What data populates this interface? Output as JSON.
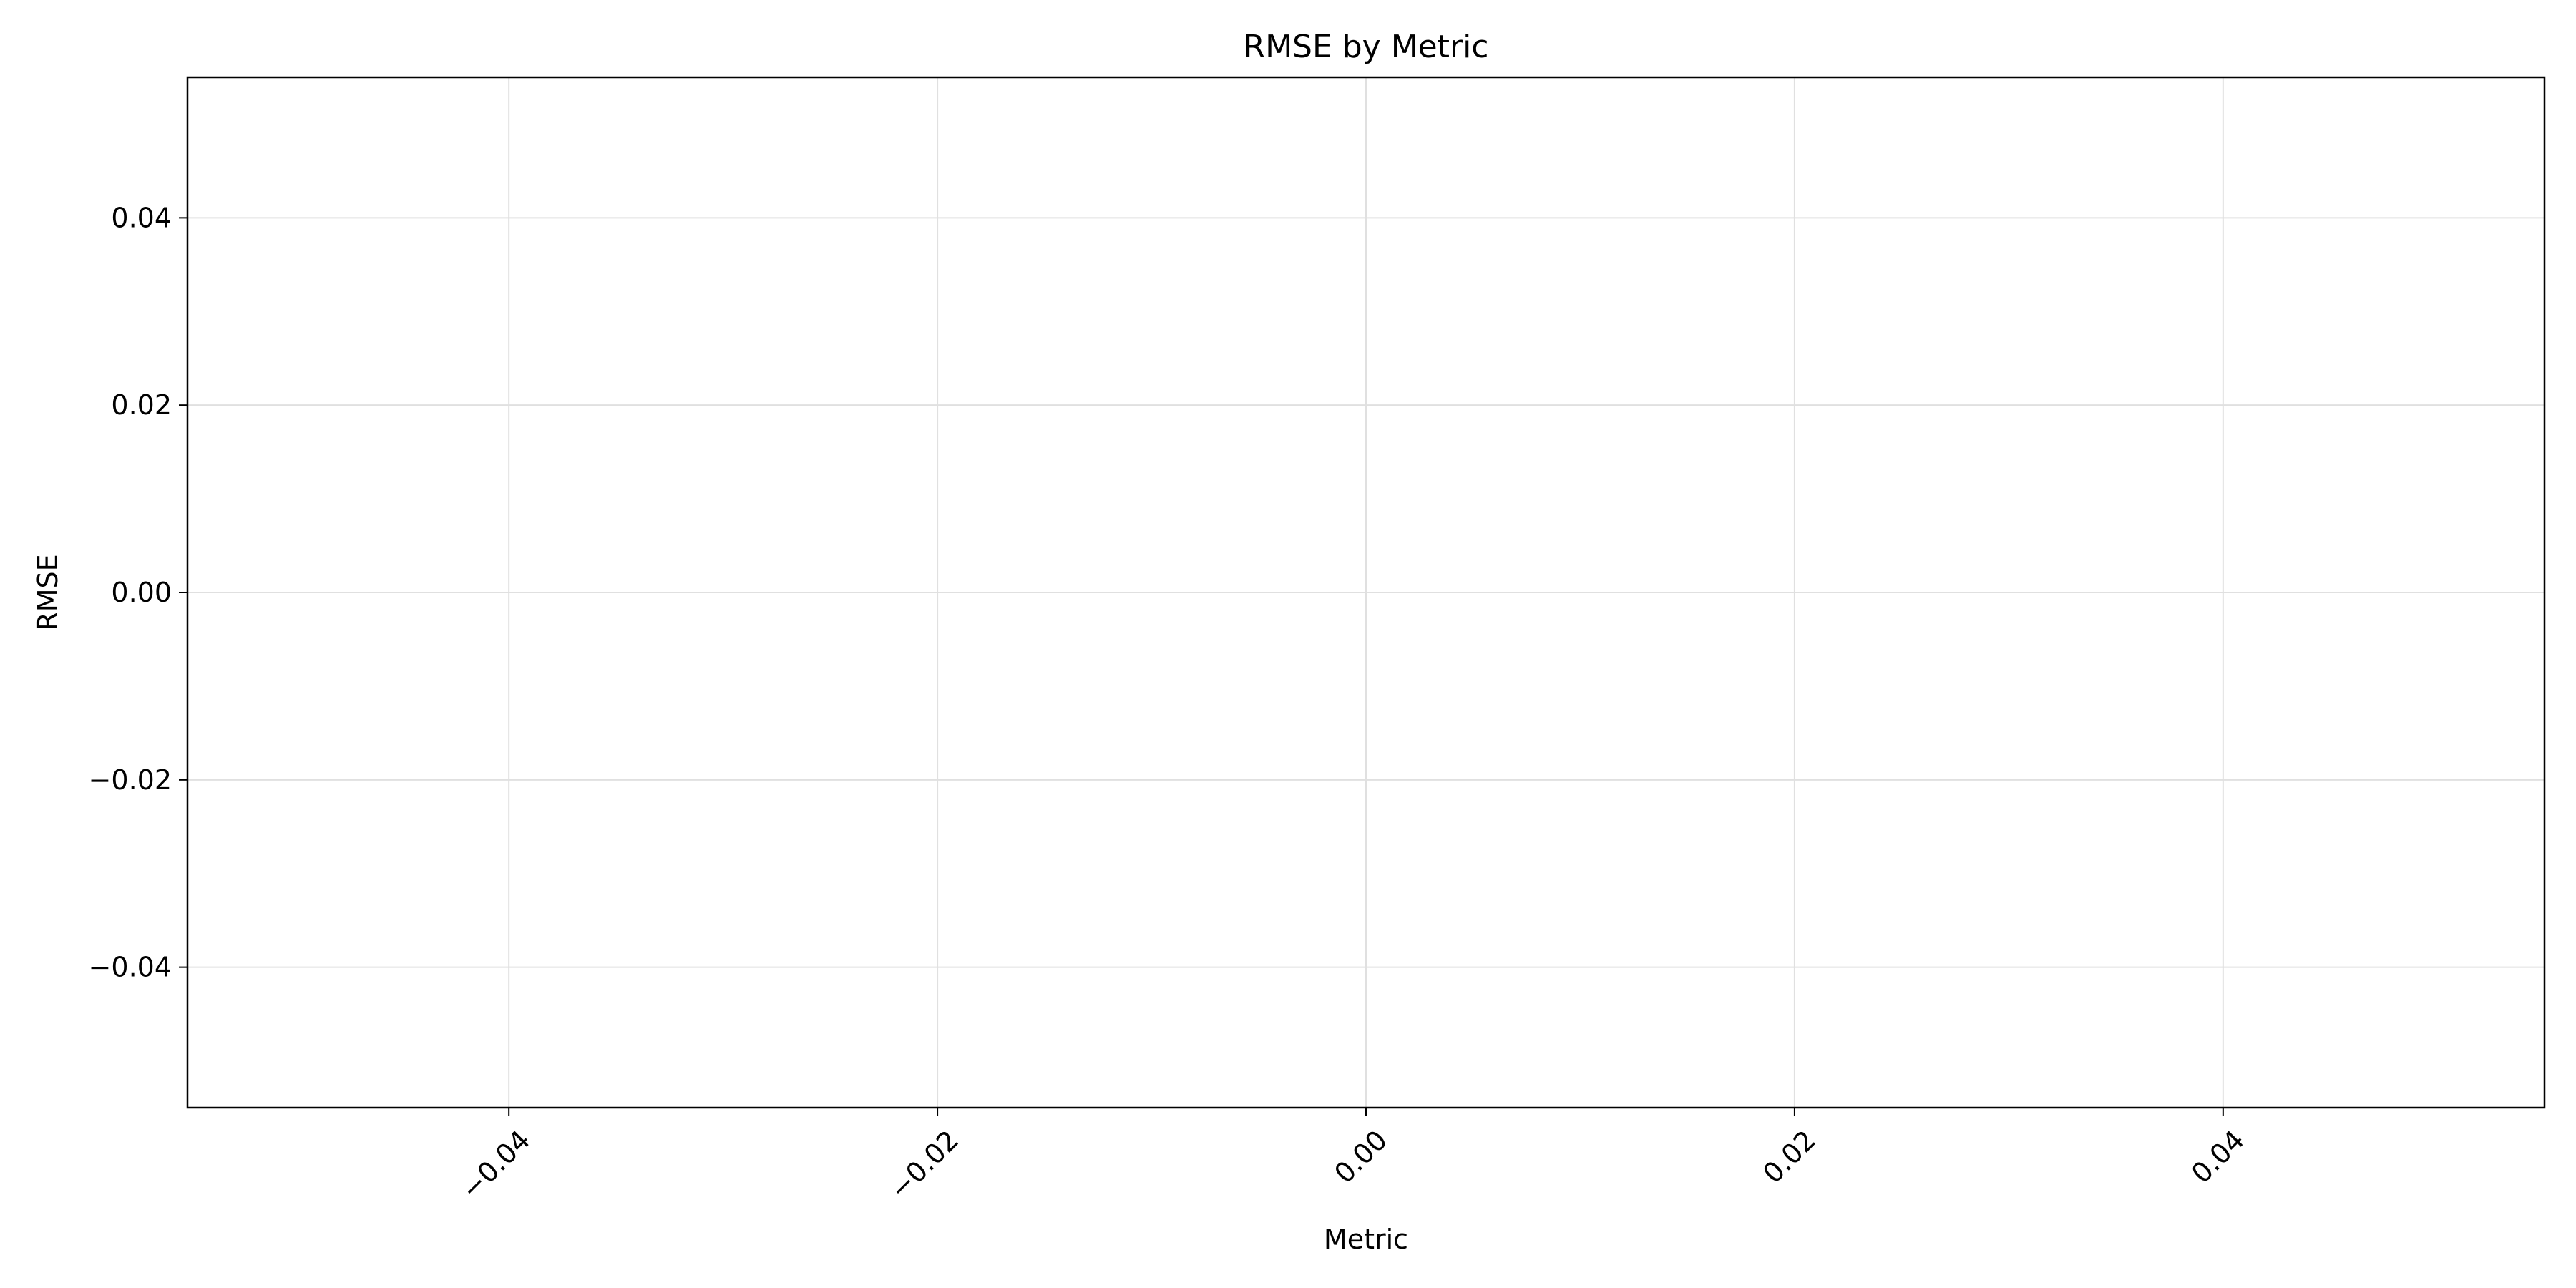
{
  "chart_data": {
    "type": "bar",
    "title": "RMSE by Metric",
    "xlabel": "Metric",
    "ylabel": "RMSE",
    "categories": [],
    "values": [],
    "xlim": [
      -0.055,
      0.055
    ],
    "ylim": [
      -0.055,
      0.055
    ],
    "x_ticks": [
      -0.04,
      -0.02,
      0.0,
      0.02,
      0.04
    ],
    "x_tick_labels": [
      "−0.04",
      "−0.02",
      "0.00",
      "0.02",
      "0.04"
    ],
    "y_ticks": [
      0.04,
      0.02,
      0.0,
      -0.02,
      -0.04
    ],
    "y_tick_labels": [
      "0.04",
      "0.02",
      "0.00",
      "−0.02",
      "−0.04"
    ],
    "x_tick_rotation": "45-degree",
    "grid": true,
    "colors": {
      "grid": "#e0e0e0",
      "axes": "#000000",
      "background": "#ffffff"
    }
  }
}
